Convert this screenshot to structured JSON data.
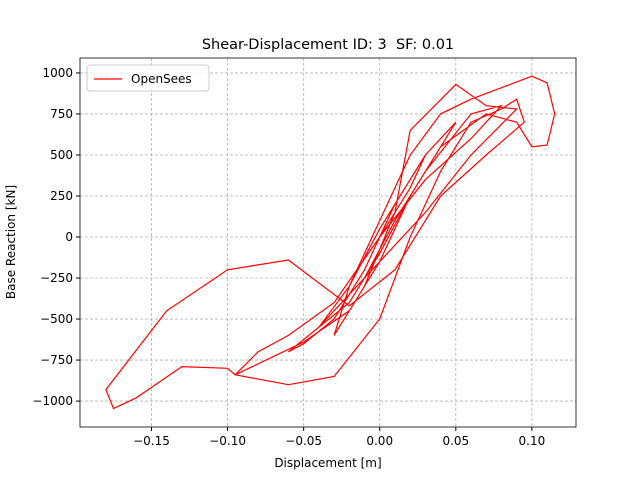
{
  "chart_data": {
    "type": "line",
    "title": "Shear-Displacement ID: 3  SF: 0.01",
    "xlabel": "Displacement [m]",
    "ylabel": "Base Reaction [kN]",
    "x": [
      0,
      0.01,
      0.02,
      0.03,
      0.02,
      0.0,
      -0.02,
      -0.04,
      -0.02,
      0,
      0.02,
      0.04,
      0.05,
      0.03,
      0.01,
      -0.01,
      -0.03,
      -0.05,
      -0.06,
      -0.04,
      -0.01,
      0.01,
      0.03,
      0.06,
      0.08,
      0.06,
      0.03,
      0,
      -0.03,
      -0.06,
      -0.08,
      -0.095,
      -0.06,
      -0.03,
      0,
      0.02,
      0.04,
      0.06,
      0.08,
      0.09,
      0.095,
      0.07,
      0.04,
      0.01,
      -0.02,
      -0.06,
      -0.1,
      -0.14,
      -0.18,
      -0.175,
      -0.16,
      -0.13,
      -0.1,
      -0.095,
      -0.05,
      -0.02,
      0,
      0.02,
      0.04,
      0.07,
      0.09,
      0.1,
      0.11,
      0.115,
      0.11,
      0.1,
      0.06,
      0.04,
      0.02,
      0,
      -0.02,
      -0.03,
      -0.01,
      0.01,
      0.02,
      0.05,
      0.07,
      0.09,
      0.06,
      0.03,
      0,
      -0.02
    ],
    "series": [
      {
        "name": "OpenSees",
        "color": "#ff0000",
        "values": [
          0,
          150,
          300,
          500,
          350,
          50,
          -300,
          -550,
          -400,
          -100,
          250,
          550,
          700,
          500,
          200,
          -200,
          -500,
          -650,
          -700,
          -550,
          -250,
          100,
          400,
          750,
          800,
          600,
          350,
          0,
          -400,
          -600,
          -700,
          -840,
          -900,
          -850,
          -500,
          0,
          400,
          700,
          780,
          840,
          700,
          500,
          250,
          -200,
          -420,
          -140,
          -200,
          -450,
          -930,
          -1045,
          -980,
          -790,
          -800,
          -840,
          -640,
          -450,
          -150,
          250,
          550,
          750,
          700,
          550,
          560,
          750,
          940,
          980,
          840,
          750,
          500,
          100,
          -300,
          -600,
          -300,
          150,
          650,
          930,
          800,
          780,
          500,
          150,
          -150,
          -350
        ]
      }
    ],
    "xlim": [
      -0.197,
      0.129
    ],
    "xticks": [
      {
        "value": -0.15,
        "label": "−0.15"
      },
      {
        "value": -0.1,
        "label": "−0.10"
      },
      {
        "value": -0.05,
        "label": "−0.05"
      },
      {
        "value": 0,
        "label": "0.00"
      },
      {
        "value": 0.05,
        "label": "0.05"
      },
      {
        "value": 0.1,
        "label": "0.10"
      }
    ],
    "ylim": [
      -1158,
      1091
    ],
    "yticks": [
      {
        "value": -1000,
        "label": "−1000"
      },
      {
        "value": -750,
        "label": "−750"
      },
      {
        "value": -500,
        "label": "−500"
      },
      {
        "value": -250,
        "label": "−250"
      },
      0,
      250,
      500,
      750,
      1000
    ],
    "grid": true,
    "legend": "upper left"
  }
}
